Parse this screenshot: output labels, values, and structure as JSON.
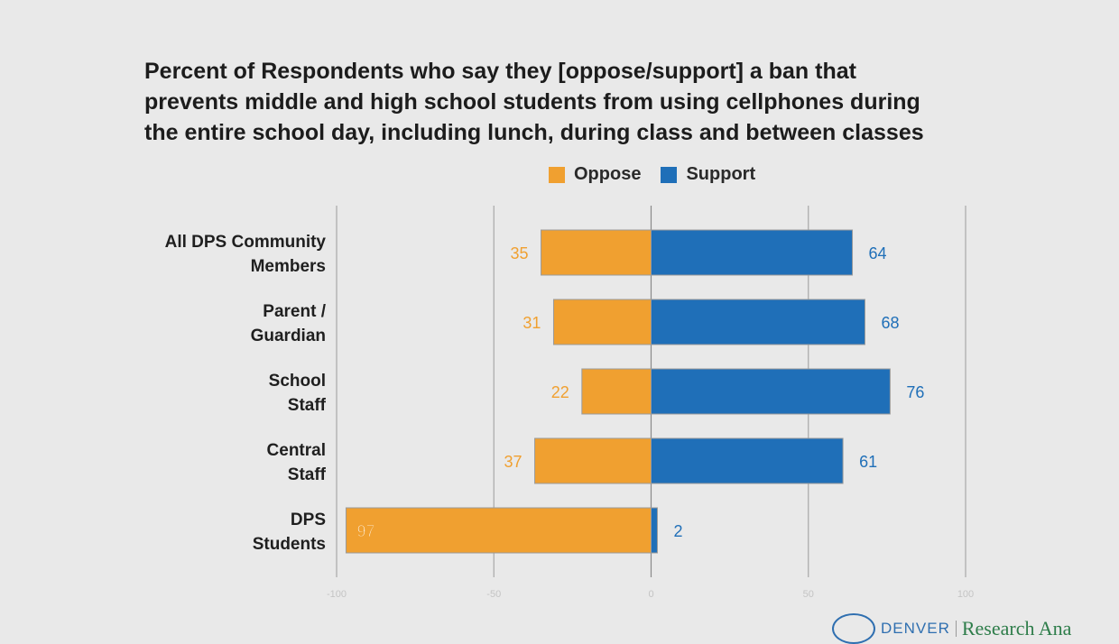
{
  "chart_data": {
    "type": "bar",
    "orientation": "horizontal",
    "layout": "diverging",
    "title": "Percent of Respondents who say they [oppose/support] a ban that prevents middle and high school students from using cellphones during the entire school day, including lunch, during class and between classes",
    "legend": [
      "Oppose",
      "Support"
    ],
    "legend_position": "top",
    "categories": [
      "All DPS Community Members",
      "Parent / Guardian",
      "School Staff",
      "Central Staff",
      "DPS Students"
    ],
    "series": [
      {
        "name": "Oppose",
        "color": "#f0a030",
        "values": [
          35,
          31,
          22,
          37,
          97
        ]
      },
      {
        "name": "Support",
        "color": "#1f6fb8",
        "values": [
          64,
          68,
          76,
          61,
          2
        ]
      }
    ],
    "xlim": [
      -100,
      100
    ],
    "x_ticks": [
      "-100",
      "-50",
      "0",
      "50",
      "100"
    ],
    "grid": true
  },
  "footer": {
    "logo_name": "DENVER",
    "logo_dept": "Research Ana"
  }
}
